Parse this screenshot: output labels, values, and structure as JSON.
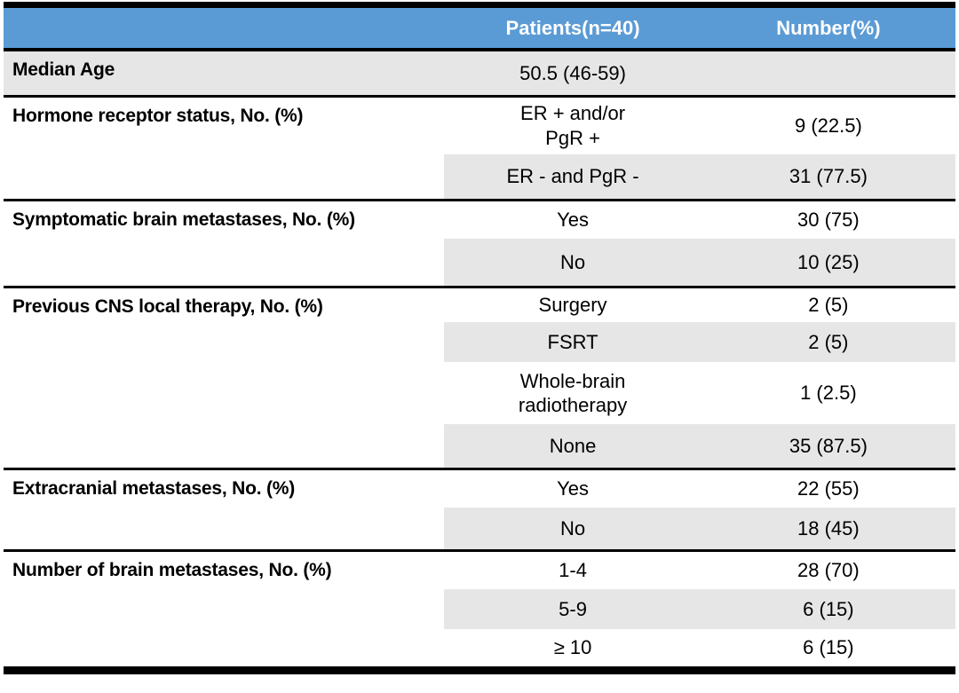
{
  "colors": {
    "header_bg": "#5B9BD5",
    "header_text": "#FFFFFF",
    "band_gray": "#E7E6E6",
    "rule_black": "#000000"
  },
  "header": {
    "col_category": "",
    "col_patients": "Patients(n=40)",
    "col_number": "Number(%)"
  },
  "sections": [
    {
      "label": "Median Age",
      "rows": [
        {
          "value": "50.5 (46-59)",
          "number": ""
        }
      ]
    },
    {
      "label": "Hormone receptor status, No. (%)",
      "rows": [
        {
          "value": "ER + and/or\nPgR +",
          "number": "9 (22.5)"
        },
        {
          "value": "ER - and PgR -",
          "number": "31 (77.5)"
        }
      ]
    },
    {
      "label": "Symptomatic brain metastases, No. (%)",
      "rows": [
        {
          "value": "Yes",
          "number": "30 (75)"
        },
        {
          "value": "No",
          "number": "10 (25)"
        }
      ]
    },
    {
      "label": "Previous CNS local therapy, No. (%)",
      "rows": [
        {
          "value": "Surgery",
          "number": "2 (5)"
        },
        {
          "value": "FSRT",
          "number": "2 (5)"
        },
        {
          "value": "Whole-brain\nradiotherapy",
          "number": "1 (2.5)"
        },
        {
          "value": "None",
          "number": "35 (87.5)"
        }
      ]
    },
    {
      "label": "Extracranial metastases, No. (%)",
      "rows": [
        {
          "value": "Yes",
          "number": "22 (55)"
        },
        {
          "value": "No",
          "number": "18 (45)"
        }
      ]
    },
    {
      "label": "Number of brain metastases, No. (%)",
      "rows": [
        {
          "value": "1-4",
          "number": "28 (70)"
        },
        {
          "value": "5-9",
          "number": "6 (15)"
        },
        {
          "value": "≥ 10",
          "number": "6 (15)"
        }
      ]
    }
  ]
}
